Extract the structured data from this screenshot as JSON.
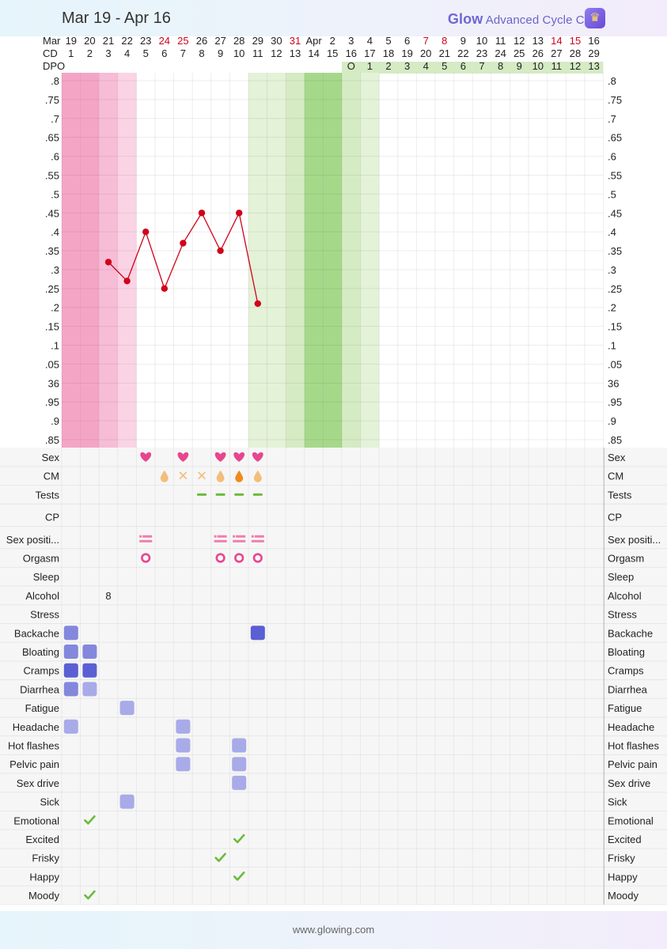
{
  "header": {
    "date_range": "Mar 19 - Apr 16",
    "brand_glow": "Glow",
    "brand_rest": " Advanced Cycle Chart",
    "crown_icon": "crown-icon"
  },
  "footer": {
    "url": "www.glowing.com"
  },
  "colors": {
    "accent": "#6b64c9",
    "line": "#d0021b",
    "weekend": "#d0021b",
    "period_heavy": "#f4a5c6",
    "period_medium": "#f7bcd6",
    "period_light": "#fad4e4",
    "fertile_light": "#e4f2d8",
    "fertile_mid": "#d5ebc4",
    "fertile_strong": "#a6d88a",
    "sex": "#e8458f",
    "symptom_light": "#a8abe8",
    "symptom_mid": "#8388dd",
    "symptom_dark": "#5b5fd4",
    "check": "#6dbb3e"
  },
  "chart_data": {
    "type": "line",
    "row_labels": {
      "date": "Mar",
      "cd": "CD",
      "dpo": "DPO"
    },
    "dates": [
      "19",
      "20",
      "21",
      "22",
      "23",
      "24",
      "25",
      "26",
      "27",
      "28",
      "29",
      "30",
      "31",
      "Apr",
      "2",
      "3",
      "4",
      "5",
      "6",
      "7",
      "8",
      "9",
      "10",
      "11",
      "12",
      "13",
      "14",
      "15",
      "16"
    ],
    "weekend_days": [
      5,
      6,
      12,
      19,
      20,
      26,
      27
    ],
    "cd": [
      "1",
      "2",
      "3",
      "4",
      "5",
      "6",
      "7",
      "8",
      "9",
      "10",
      "11",
      "12",
      "13",
      "14",
      "15",
      "16",
      "17",
      "18",
      "19",
      "20",
      "21",
      "22",
      "23",
      "24",
      "25",
      "26",
      "27",
      "28",
      "29"
    ],
    "dpo": [
      "",
      "",
      "",
      "",
      "",
      "",
      "",
      "",
      "",
      "",
      "",
      "",
      "",
      "",
      "",
      "O",
      "1",
      "2",
      "3",
      "4",
      "5",
      "6",
      "7",
      "8",
      "9",
      "10",
      "11",
      "12",
      "13"
    ],
    "y_ticks": [
      ".8",
      ".75",
      ".7",
      ".65",
      ".6",
      ".55",
      ".5",
      ".45",
      ".4",
      ".35",
      ".3",
      ".25",
      ".2",
      ".15",
      ".1",
      ".05",
      "36",
      ".95",
      ".9",
      ".85"
    ],
    "ylim": [
      35.85,
      36.8
    ],
    "series": [
      {
        "x": [
          3,
          4,
          5,
          6,
          7,
          8,
          9,
          10,
          11
        ],
        "y": [
          36.32,
          36.27,
          36.4,
          36.25,
          36.37,
          36.45,
          36.35,
          36.45,
          36.21
        ]
      }
    ],
    "period_days": [
      {
        "day": 1,
        "level": "heavy"
      },
      {
        "day": 2,
        "level": "heavy"
      },
      {
        "day": 3,
        "level": "medium"
      },
      {
        "day": 4,
        "level": "light"
      }
    ],
    "fertile_days": [
      {
        "day": 11,
        "level": "light"
      },
      {
        "day": 12,
        "level": "light"
      },
      {
        "day": 13,
        "level": "mid"
      },
      {
        "day": 14,
        "level": "strong"
      },
      {
        "day": 15,
        "level": "strong"
      },
      {
        "day": 16,
        "level": "mid"
      },
      {
        "day": 17,
        "level": "light"
      }
    ],
    "tracking_rows": [
      "Sex",
      "CM",
      "Tests",
      "CP",
      "Sex positi...",
      "Orgasm",
      "Sleep",
      "Alcohol",
      "Stress",
      "Backache",
      "Bloating",
      "Cramps",
      "Diarrhea",
      "Fatigue",
      "Headache",
      "Hot flashes",
      "Pelvic pain",
      "Sex drive",
      "Sick",
      "Emotional",
      "Excited",
      "Frisky",
      "Happy",
      "Moody"
    ],
    "tracking_labels_right": [
      "Sex",
      "CM",
      "Tests",
      "CP",
      "Sex positi...",
      "Orgasm",
      "Sleep",
      "Alcohol",
      "Stress",
      "Backache",
      "Bloating",
      "Cramps",
      "Diarrhea",
      "Fatigue",
      "Headache",
      "Hot flashes",
      "Pelvic pain",
      "Sex drive",
      "Sick",
      "Emotional",
      "Excited",
      "Frisky",
      "Happy",
      "Moody"
    ],
    "markers": [
      {
        "row": "Sex",
        "day": 5,
        "kind": "heart"
      },
      {
        "row": "Sex",
        "day": 7,
        "kind": "heart"
      },
      {
        "row": "Sex",
        "day": 9,
        "kind": "heart"
      },
      {
        "row": "Sex",
        "day": 10,
        "kind": "heart"
      },
      {
        "row": "Sex",
        "day": 11,
        "kind": "heart"
      },
      {
        "row": "CM",
        "day": 6,
        "kind": "drop-light"
      },
      {
        "row": "CM",
        "day": 7,
        "kind": "cross"
      },
      {
        "row": "CM",
        "day": 8,
        "kind": "cross"
      },
      {
        "row": "CM",
        "day": 9,
        "kind": "drop-light"
      },
      {
        "row": "CM",
        "day": 10,
        "kind": "drop-dark"
      },
      {
        "row": "CM",
        "day": 11,
        "kind": "drop-light"
      },
      {
        "row": "Tests",
        "day": 8,
        "kind": "dash"
      },
      {
        "row": "Tests",
        "day": 9,
        "kind": "dash"
      },
      {
        "row": "Tests",
        "day": 10,
        "kind": "dash"
      },
      {
        "row": "Tests",
        "day": 11,
        "kind": "dash"
      },
      {
        "row": "Sex positi...",
        "day": 5,
        "kind": "position"
      },
      {
        "row": "Sex positi...",
        "day": 9,
        "kind": "position"
      },
      {
        "row": "Sex positi...",
        "day": 10,
        "kind": "position"
      },
      {
        "row": "Sex positi...",
        "day": 11,
        "kind": "position"
      },
      {
        "row": "Orgasm",
        "day": 5,
        "kind": "ring"
      },
      {
        "row": "Orgasm",
        "day": 9,
        "kind": "ring"
      },
      {
        "row": "Orgasm",
        "day": 10,
        "kind": "ring"
      },
      {
        "row": "Orgasm",
        "day": 11,
        "kind": "ring"
      },
      {
        "row": "Alcohol",
        "day": 3,
        "kind": "text",
        "value": "8"
      },
      {
        "row": "Backache",
        "day": 1,
        "kind": "symptom",
        "level": 2
      },
      {
        "row": "Backache",
        "day": 11,
        "kind": "symptom",
        "level": 3
      },
      {
        "row": "Bloating",
        "day": 1,
        "kind": "symptom",
        "level": 2
      },
      {
        "row": "Bloating",
        "day": 2,
        "kind": "symptom",
        "level": 2
      },
      {
        "row": "Cramps",
        "day": 1,
        "kind": "symptom",
        "level": 3
      },
      {
        "row": "Cramps",
        "day": 2,
        "kind": "symptom",
        "level": 3
      },
      {
        "row": "Diarrhea",
        "day": 1,
        "kind": "symptom",
        "level": 2
      },
      {
        "row": "Diarrhea",
        "day": 2,
        "kind": "symptom",
        "level": 1
      },
      {
        "row": "Fatigue",
        "day": 4,
        "kind": "symptom",
        "level": 1
      },
      {
        "row": "Headache",
        "day": 1,
        "kind": "symptom",
        "level": 1
      },
      {
        "row": "Headache",
        "day": 7,
        "kind": "symptom",
        "level": 1
      },
      {
        "row": "Hot flashes",
        "day": 7,
        "kind": "symptom",
        "level": 1
      },
      {
        "row": "Hot flashes",
        "day": 10,
        "kind": "symptom",
        "level": 1
      },
      {
        "row": "Pelvic pain",
        "day": 7,
        "kind": "symptom",
        "level": 1
      },
      {
        "row": "Pelvic pain",
        "day": 10,
        "kind": "symptom",
        "level": 1
      },
      {
        "row": "Sex drive",
        "day": 10,
        "kind": "symptom",
        "level": 1
      },
      {
        "row": "Sick",
        "day": 4,
        "kind": "symptom",
        "level": 1
      },
      {
        "row": "Emotional",
        "day": 2,
        "kind": "check"
      },
      {
        "row": "Excited",
        "day": 10,
        "kind": "check"
      },
      {
        "row": "Frisky",
        "day": 9,
        "kind": "check"
      },
      {
        "row": "Happy",
        "day": 10,
        "kind": "check"
      },
      {
        "row": "Moody",
        "day": 2,
        "kind": "check"
      }
    ]
  }
}
